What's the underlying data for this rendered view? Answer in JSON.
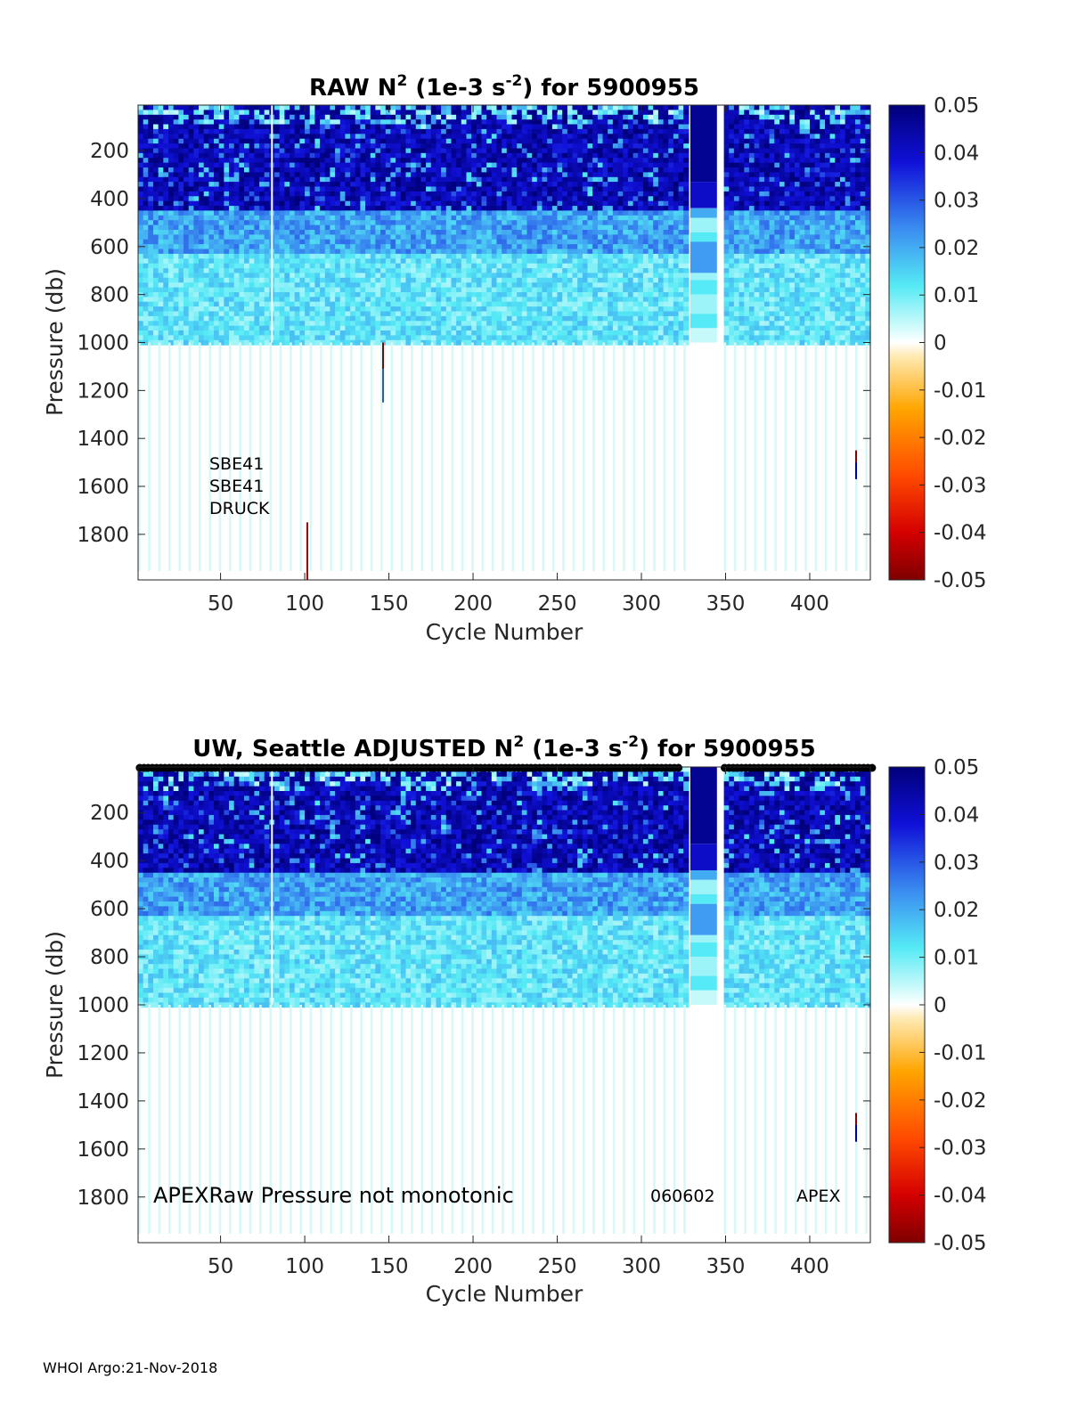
{
  "chart_data": [
    {
      "type": "heatmap",
      "title_parts": {
        "pre": "RAW N",
        "sup1": "2",
        "mid": " (1e-3 s",
        "sup2": "-2",
        "post": ") for 5900955"
      },
      "xlabel": "Cycle Number",
      "ylabel": "Pressure (db)",
      "xlim": [
        1,
        436
      ],
      "ylim": [
        1990,
        10
      ],
      "y_reversed": true,
      "x_ticks": [
        50,
        100,
        150,
        200,
        250,
        300,
        350,
        400
      ],
      "y_ticks": [
        200,
        400,
        600,
        800,
        1000,
        1200,
        1400,
        1600,
        1800
      ],
      "colorbar": {
        "clim": [
          -0.05,
          0.05
        ],
        "ticks": [
          "0.05",
          "0.04",
          "0.03",
          "0.02",
          "0.01",
          "0",
          "-0.01",
          "-0.02",
          "-0.03",
          "-0.04",
          "-0.05"
        ],
        "colormap": "jet"
      },
      "annotations": [
        "SBE41",
        "SBE41",
        "DRUCK"
      ],
      "gap_cycles": [
        328,
        347
      ],
      "deep_profile_limit": 1000
    },
    {
      "type": "heatmap",
      "title_parts": {
        "pre": "UW, Seattle  ADJUSTED N",
        "sup1": "2",
        "mid": " (1e-3 s",
        "sup2": "-2",
        "post": ") for 5900955"
      },
      "xlabel": "Cycle Number",
      "ylabel": "Pressure (db)",
      "xlim": [
        1,
        436
      ],
      "ylim": [
        1990,
        10
      ],
      "y_reversed": true,
      "x_ticks": [
        50,
        100,
        150,
        200,
        250,
        300,
        350,
        400
      ],
      "y_ticks": [
        200,
        400,
        600,
        800,
        1000,
        1200,
        1400,
        1600,
        1800
      ],
      "colorbar": {
        "clim": [
          -0.05,
          0.05
        ],
        "ticks": [
          "0.05",
          "0.04",
          "0.03",
          "0.02",
          "0.01",
          "0",
          "-0.01",
          "-0.02",
          "-0.03",
          "-0.04",
          "-0.05"
        ],
        "colormap": "jet"
      },
      "annotations": [
        "APEXRaw Pressure not monotonic",
        "060602",
        "APEX"
      ],
      "gap_cycles": [
        328,
        347
      ],
      "deep_profile_limit": 1000
    }
  ],
  "footer": "WHOI Argo:21-Nov-2018"
}
